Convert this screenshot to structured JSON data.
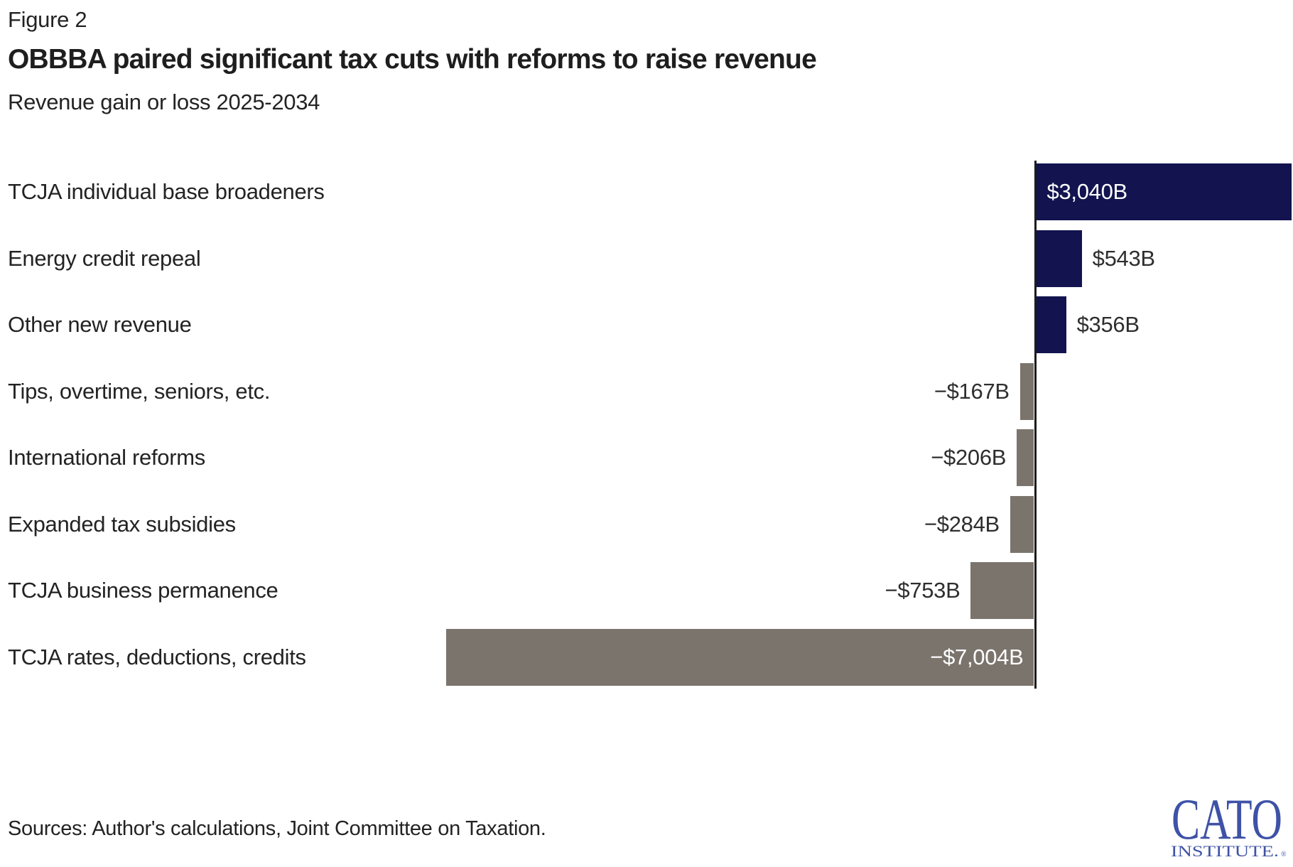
{
  "figure_label": "Figure 2",
  "title": "OBBBA paired significant tax cuts with reforms to raise revenue",
  "subtitle": "Revenue gain or loss 2025-2034",
  "source_note": "Sources: Author's calculations, Joint Committee on Taxation.",
  "logo": {
    "primary": "CATO",
    "secondary": "INSTITUTE.",
    "registered": "®"
  },
  "colors": {
    "positive_bar": "#12134f",
    "negative_bar": "#7b746d",
    "axis": "#1c1c1c",
    "value_inside": "#ffffff",
    "value_outside": "#2e2e2e",
    "logo_blue": "#3e52a6"
  },
  "chart_data": {
    "type": "bar",
    "orientation": "horizontal",
    "unit": "billions of US dollars",
    "title": "OBBBA paired significant tax cuts with reforms to raise revenue",
    "subtitle": "Revenue gain or loss 2025-2034",
    "categories": [
      "TCJA individual base broadeners",
      "Energy credit repeal",
      "Other new revenue",
      "Tips, overtime, seniors, etc.",
      "International reforms",
      "Expanded tax subsidies",
      "TCJA business permanence",
      "TCJA rates, deductions, credits"
    ],
    "values": [
      3040,
      543,
      356,
      -167,
      -206,
      -284,
      -753,
      -7004
    ],
    "value_labels": [
      "$3,040B",
      "$543B",
      "$356B",
      "−$167B",
      "−$206B",
      "−$284B",
      "−$753B",
      "−$7,004B"
    ],
    "xlim": [
      -7100,
      3100
    ],
    "baseline": 0,
    "grid": false,
    "legend": false,
    "axis_ticks": "none"
  }
}
